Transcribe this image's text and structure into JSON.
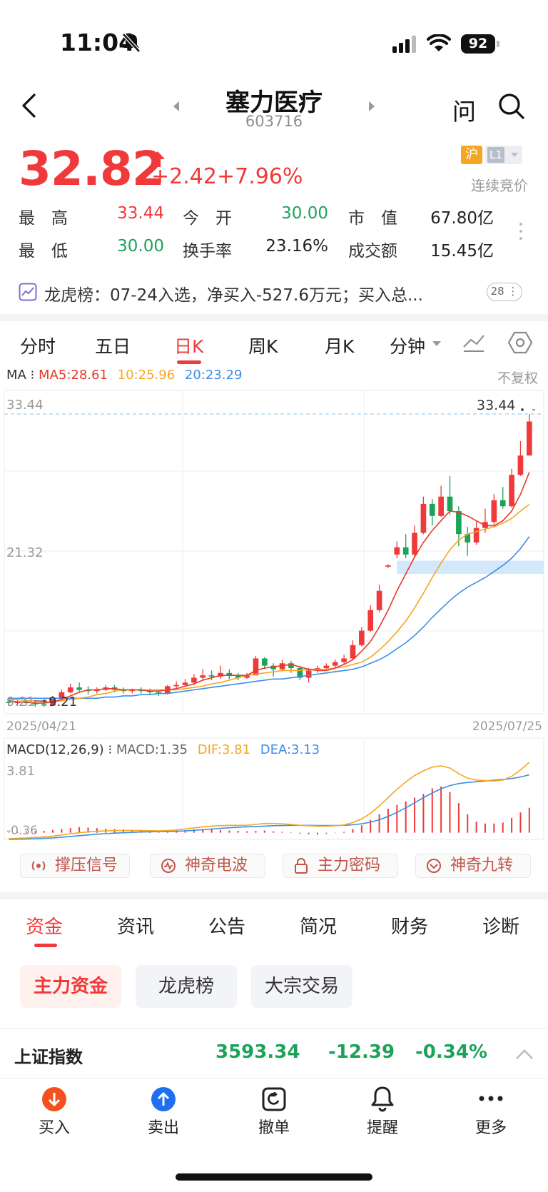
{
  "status_bar": {
    "time": "11:04",
    "battery": "92"
  },
  "header": {
    "name": "塞力医疗",
    "code": "603716",
    "ask_label": "问",
    "exchange_badge": "沪",
    "level_badge": "L1",
    "trade_status": "连续竞价"
  },
  "quote": {
    "price": "32.82",
    "change": "+2.42",
    "change_pct": "+7.96%",
    "high_label": "最　高",
    "high": "33.44",
    "open_label": "今　开",
    "open": "30.00",
    "mcap_label": "市　值",
    "mcap": "67.80亿",
    "low_label": "最　低",
    "low": "30.00",
    "turnover_label": "换手率",
    "turnover": "23.16%",
    "amount_label": "成交额",
    "amount": "15.45亿"
  },
  "banner": {
    "text": "龙虎榜：07-24入选，净买入-527.6万元；买入总...",
    "badge": "28"
  },
  "chart_tabs": [
    "分时",
    "五日",
    "日K",
    "周K",
    "月K",
    "分钟"
  ],
  "ma": {
    "label": "MA",
    "ma5": "MA5:28.61",
    "ma10": "10:25.96",
    "ma20": "20:23.29",
    "adjust": "不复权"
  },
  "chart_labels": {
    "top": "33.44",
    "mid": "21.32",
    "bottom": "9.21",
    "low_marker": "9.21",
    "high_marker": "33.44",
    "start_date": "2025/04/21",
    "end_date": "2025/07/25"
  },
  "macd": {
    "label": "MACD(12,26,9)",
    "macd": "MACD:1.35",
    "dif": "DIF:3.81",
    "dea": "DEA:3.13",
    "top": "3.81",
    "bottom": "-0.36"
  },
  "colors": {
    "up": "#f0393a",
    "down": "#1ba35a",
    "ma5": "#e53a2a",
    "ma10": "#f5a623",
    "ma20": "#3b8ee8"
  },
  "signals": [
    "撑压信号",
    "神奇电波",
    "主力密码",
    "神奇九转"
  ],
  "bottom_tabs": [
    "资金",
    "资讯",
    "公告",
    "简况",
    "财务",
    "诊断"
  ],
  "pills": [
    "主力资金",
    "龙虎榜",
    "大宗交易"
  ],
  "index": {
    "name": "上证指数",
    "value": "3593.34",
    "change": "-12.39",
    "pct": "-0.34%"
  },
  "actions": [
    "买入",
    "卖出",
    "撤单",
    "提醒",
    "更多"
  ],
  "chart_data": {
    "type": "candlestick",
    "ylim": [
      9.21,
      33.44
    ],
    "x_range": [
      "2025/04/21",
      "2025/07/25"
    ],
    "candles": [
      [
        9.6,
        9.5,
        9.9,
        9.3
      ],
      [
        9.5,
        9.6,
        9.8,
        9.3
      ],
      [
        9.6,
        9.5,
        9.8,
        9.3
      ],
      [
        9.5,
        9.4,
        9.7,
        9.21
      ],
      [
        9.4,
        9.3,
        9.6,
        9.21
      ],
      [
        9.3,
        9.9,
        10.1,
        9.3
      ],
      [
        9.9,
        10.4,
        10.6,
        9.8
      ],
      [
        10.4,
        10.8,
        11.1,
        10.3
      ],
      [
        10.8,
        10.6,
        11.2,
        10.4
      ],
      [
        10.6,
        10.5,
        10.9,
        10.2
      ],
      [
        10.5,
        10.6,
        10.8,
        10.3
      ],
      [
        10.6,
        10.8,
        11.0,
        10.5
      ],
      [
        10.8,
        10.6,
        11.0,
        10.4
      ],
      [
        10.6,
        10.5,
        10.8,
        10.3
      ],
      [
        10.5,
        10.6,
        10.7,
        10.3
      ],
      [
        10.6,
        10.5,
        10.8,
        10.3
      ],
      [
        10.5,
        10.4,
        10.7,
        10.2
      ],
      [
        10.4,
        10.3,
        10.6,
        10.1
      ],
      [
        10.3,
        10.9,
        11.0,
        10.2
      ],
      [
        10.9,
        11.0,
        11.3,
        10.7
      ],
      [
        11.0,
        11.2,
        11.5,
        10.9
      ],
      [
        11.2,
        11.6,
        11.9,
        11.0
      ],
      [
        11.6,
        11.8,
        12.3,
        11.4
      ],
      [
        11.8,
        11.7,
        12.2,
        11.4
      ],
      [
        11.7,
        12.0,
        12.6,
        11.5
      ],
      [
        12.0,
        11.8,
        12.3,
        11.5
      ],
      [
        11.8,
        11.6,
        12.0,
        11.4
      ],
      [
        11.6,
        11.8,
        12.0,
        11.5
      ],
      [
        11.8,
        13.2,
        13.4,
        11.8
      ],
      [
        13.2,
        12.6,
        13.3,
        12.3
      ],
      [
        12.6,
        12.3,
        12.8,
        11.7
      ],
      [
        12.3,
        12.8,
        13.1,
        12.2
      ],
      [
        12.8,
        12.4,
        13.0,
        12.0
      ],
      [
        12.4,
        11.6,
        12.6,
        11.4
      ],
      [
        11.6,
        12.2,
        12.4,
        11.2
      ],
      [
        12.2,
        12.4,
        12.6,
        12.0
      ],
      [
        12.4,
        12.6,
        12.8,
        12.3
      ],
      [
        12.6,
        12.9,
        13.1,
        12.4
      ],
      [
        12.9,
        13.2,
        13.5,
        12.7
      ],
      [
        13.2,
        14.3,
        14.7,
        13.1
      ],
      [
        14.3,
        15.5,
        15.8,
        14.2
      ],
      [
        15.5,
        17.2,
        17.6,
        15.4
      ],
      [
        17.2,
        18.8,
        19.3,
        17.0
      ],
      [
        20.8,
        20.9,
        21.0,
        20.7
      ],
      [
        21.8,
        22.4,
        22.9,
        21.5
      ],
      [
        22.4,
        21.8,
        23.5,
        21.5
      ],
      [
        21.8,
        23.6,
        24.2,
        21.6
      ],
      [
        23.6,
        26.0,
        26.6,
        23.5
      ],
      [
        26.0,
        25.0,
        26.4,
        24.2
      ],
      [
        25.0,
        26.6,
        27.5,
        24.9
      ],
      [
        26.6,
        25.4,
        28.3,
        25.1
      ],
      [
        25.4,
        23.5,
        25.8,
        22.5
      ],
      [
        23.5,
        22.8,
        24.1,
        21.7
      ],
      [
        22.8,
        24.0,
        24.6,
        22.6
      ],
      [
        24.0,
        24.5,
        25.6,
        23.6
      ],
      [
        24.5,
        26.3,
        26.8,
        24.3
      ],
      [
        26.3,
        25.8,
        27.4,
        25.6
      ],
      [
        25.8,
        28.4,
        28.9,
        25.7
      ],
      [
        28.4,
        30.0,
        31.2,
        28.3
      ],
      [
        30.0,
        32.82,
        33.44,
        30.0
      ]
    ],
    "ma5": [
      9.7,
      9.6,
      9.6,
      9.5,
      9.5,
      9.6,
      9.8,
      10.1,
      10.4,
      10.6,
      10.6,
      10.7,
      10.7,
      10.6,
      10.6,
      10.6,
      10.5,
      10.5,
      10.6,
      10.7,
      10.9,
      11.1,
      11.4,
      11.6,
      11.8,
      11.8,
      11.8,
      11.8,
      12.2,
      12.4,
      12.5,
      12.6,
      12.7,
      12.5,
      12.3,
      12.2,
      12.2,
      12.4,
      12.7,
      13.1,
      13.8,
      14.6,
      15.8,
      17.2,
      18.8,
      20.2,
      21.6,
      22.8,
      23.8,
      24.6,
      25.4,
      25.3,
      25.0,
      24.6,
      24.2,
      24.2,
      24.6,
      25.4,
      26.8,
      28.61
    ],
    "ma10": [
      9.8,
      9.8,
      9.7,
      9.7,
      9.6,
      9.6,
      9.7,
      9.8,
      9.9,
      10.0,
      10.2,
      10.3,
      10.5,
      10.6,
      10.6,
      10.6,
      10.6,
      10.6,
      10.6,
      10.6,
      10.7,
      10.8,
      10.9,
      11.1,
      11.2,
      11.4,
      11.6,
      11.8,
      11.9,
      12.0,
      12.1,
      12.2,
      12.2,
      12.2,
      12.3,
      12.3,
      12.3,
      12.4,
      12.5,
      12.7,
      12.9,
      13.3,
      13.9,
      14.6,
      15.4,
      16.3,
      17.4,
      18.6,
      19.9,
      21.1,
      22.2,
      23.0,
      23.5,
      23.7,
      23.9,
      24.1,
      24.4,
      24.8,
      25.4,
      25.96
    ],
    "ma20": [
      9.9,
      9.9,
      9.9,
      9.9,
      9.9,
      9.9,
      9.9,
      9.9,
      9.9,
      9.9,
      9.9,
      10.0,
      10.0,
      10.1,
      10.1,
      10.2,
      10.2,
      10.3,
      10.3,
      10.4,
      10.5,
      10.6,
      10.7,
      10.8,
      10.9,
      11.0,
      11.1,
      11.2,
      11.3,
      11.4,
      11.5,
      11.5,
      11.6,
      11.7,
      11.8,
      11.9,
      12.0,
      12.1,
      12.2,
      12.3,
      12.5,
      12.8,
      13.1,
      13.5,
      14.0,
      14.5,
      15.1,
      15.8,
      16.6,
      17.3,
      18.0,
      18.6,
      19.1,
      19.5,
      19.9,
      20.4,
      20.9,
      21.5,
      22.3,
      23.29
    ],
    "support_band": [
      20.2,
      21.3
    ],
    "macd_ylim": [
      -0.36,
      3.81
    ],
    "macd_hist": [
      0.02,
      0.05,
      0.08,
      0.08,
      0.1,
      0.15,
      0.2,
      0.25,
      0.3,
      0.28,
      0.25,
      0.22,
      0.2,
      0.18,
      0.15,
      0.12,
      0.1,
      0.08,
      0.1,
      0.12,
      0.15,
      0.18,
      0.2,
      0.18,
      0.15,
      0.12,
      0.1,
      0.08,
      0.1,
      0.12,
      0.08,
      0.05,
      0.02,
      -0.05,
      -0.08,
      -0.1,
      -0.06,
      -0.02,
      0.05,
      0.2,
      0.4,
      0.7,
      1.0,
      1.3,
      1.5,
      1.7,
      1.9,
      2.1,
      2.4,
      2.5,
      2.2,
      1.6,
      1.0,
      0.6,
      0.5,
      0.5,
      0.55,
      0.8,
      1.1,
      1.35
    ],
    "dif": [
      -0.32,
      -0.3,
      -0.28,
      -0.25,
      -0.22,
      -0.18,
      -0.12,
      -0.05,
      0.0,
      0.05,
      0.08,
      0.1,
      0.12,
      0.12,
      0.12,
      0.12,
      0.11,
      0.1,
      0.12,
      0.15,
      0.2,
      0.26,
      0.32,
      0.36,
      0.38,
      0.4,
      0.4,
      0.4,
      0.45,
      0.5,
      0.5,
      0.48,
      0.45,
      0.4,
      0.38,
      0.36,
      0.36,
      0.38,
      0.42,
      0.55,
      0.75,
      1.05,
      1.45,
      1.9,
      2.35,
      2.75,
      3.1,
      3.35,
      3.55,
      3.62,
      3.5,
      3.2,
      2.95,
      2.85,
      2.82,
      2.8,
      2.85,
      3.05,
      3.4,
      3.81
    ],
    "dea": [
      -0.36,
      -0.35,
      -0.34,
      -0.32,
      -0.3,
      -0.28,
      -0.24,
      -0.2,
      -0.16,
      -0.12,
      -0.08,
      -0.05,
      -0.02,
      0.0,
      0.02,
      0.04,
      0.05,
      0.06,
      0.07,
      0.08,
      0.1,
      0.13,
      0.16,
      0.2,
      0.24,
      0.27,
      0.3,
      0.32,
      0.34,
      0.36,
      0.38,
      0.39,
      0.4,
      0.4,
      0.4,
      0.39,
      0.39,
      0.39,
      0.4,
      0.43,
      0.48,
      0.57,
      0.7,
      0.88,
      1.1,
      1.35,
      1.62,
      1.9,
      2.15,
      2.38,
      2.55,
      2.66,
      2.72,
      2.76,
      2.8,
      2.84,
      2.88,
      2.93,
      3.02,
      3.13
    ]
  }
}
